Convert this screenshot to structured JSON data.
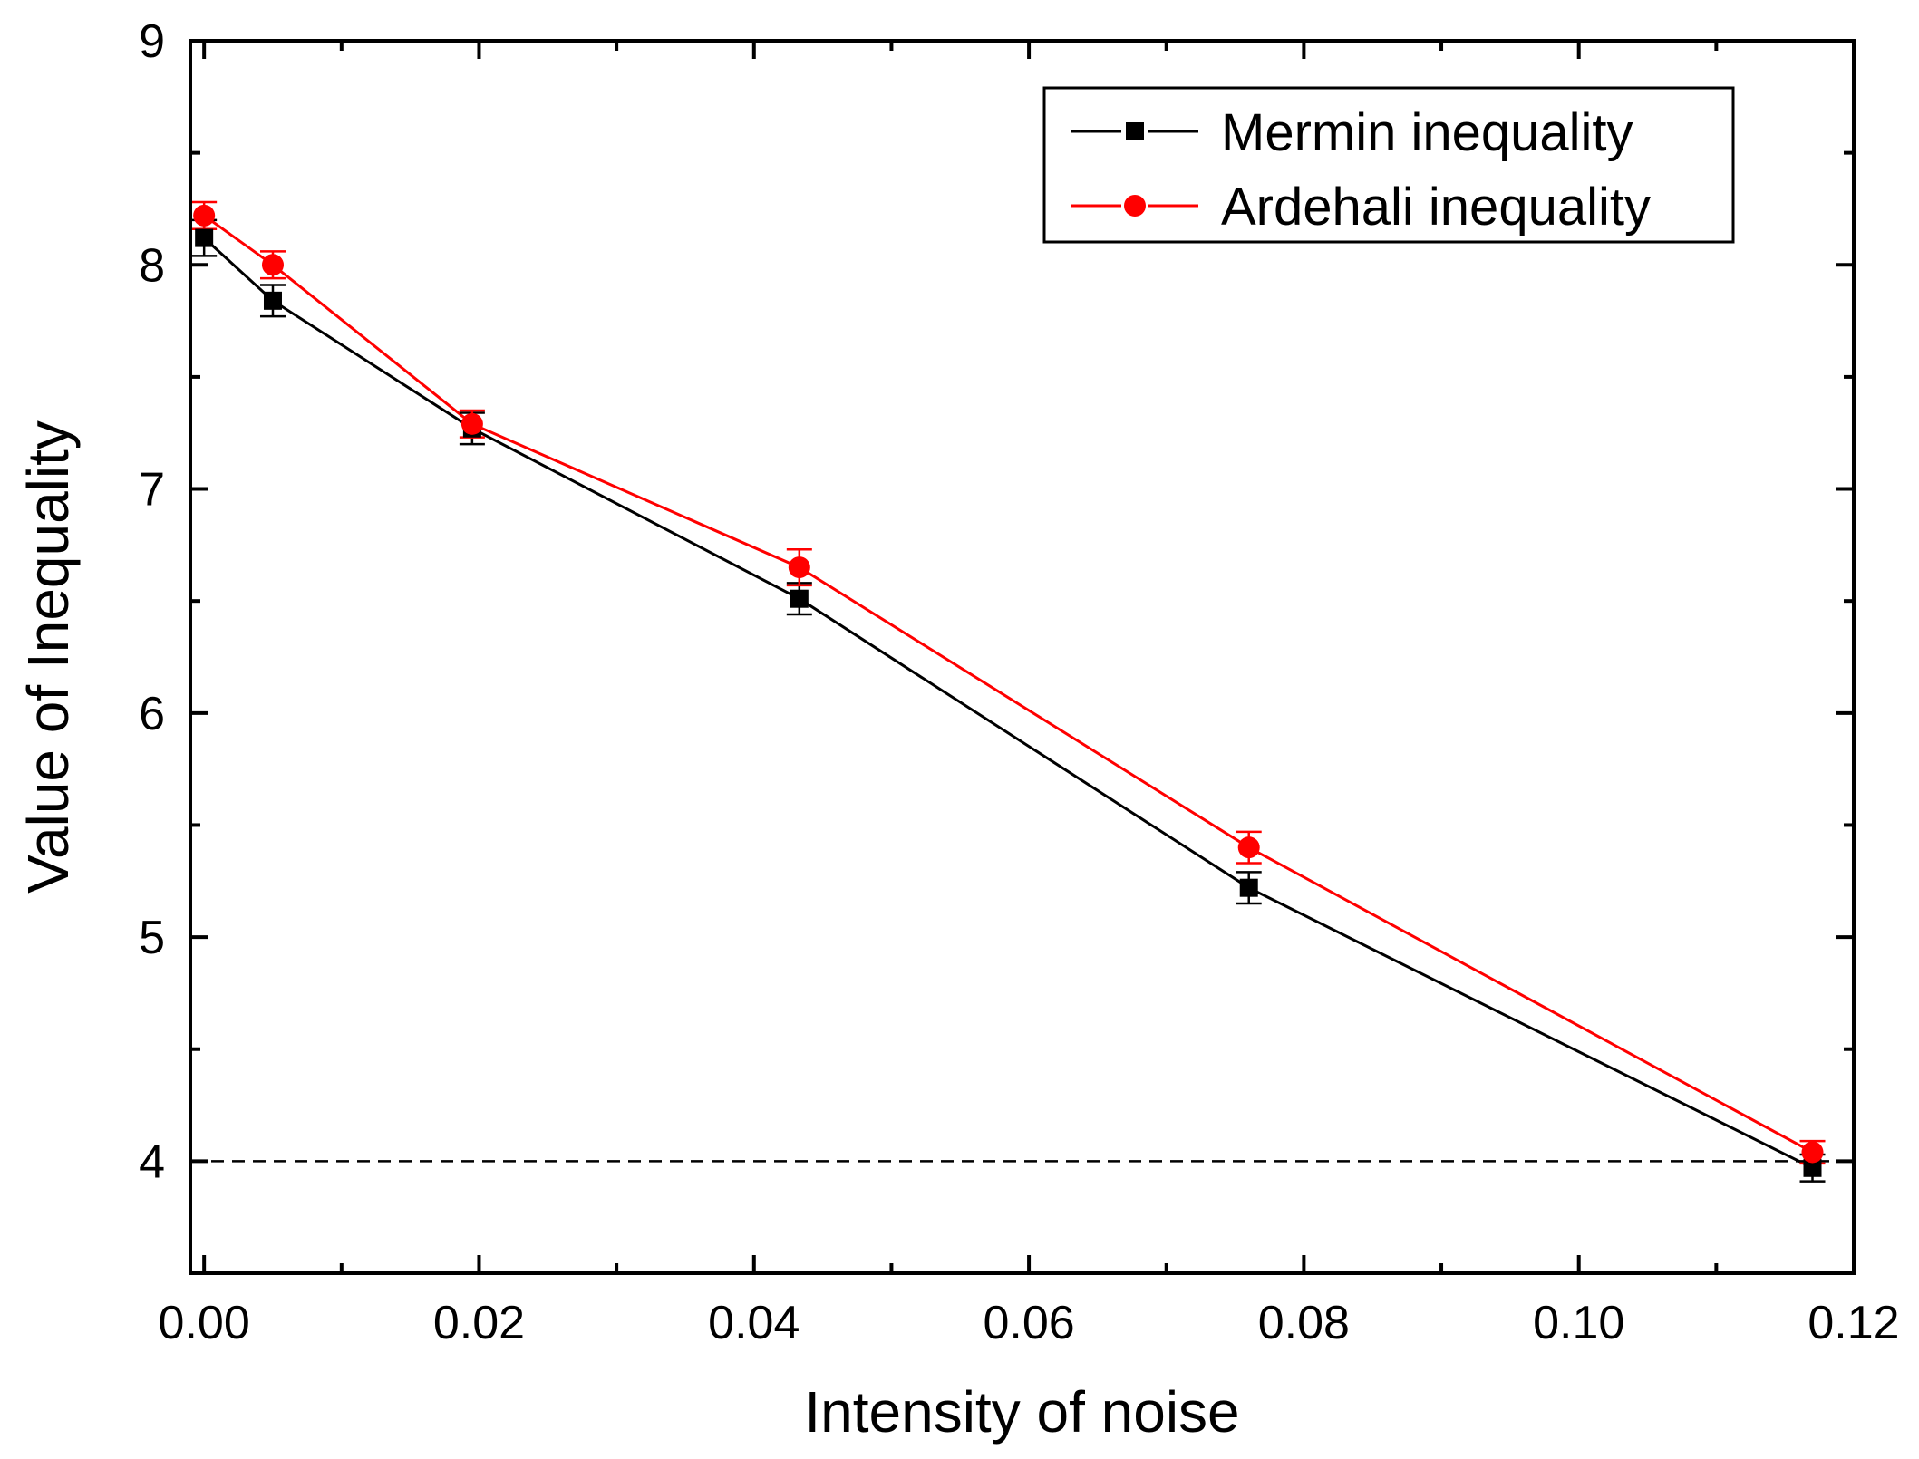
{
  "chart_data": {
    "type": "line",
    "title": "",
    "xlabel": "Intensity of noise",
    "ylabel": "Value of Inequality",
    "xlim": [
      -0.001,
      0.12
    ],
    "ylim": [
      3.5,
      9.0
    ],
    "xticks": [
      0.0,
      0.02,
      0.04,
      0.06,
      0.08,
      0.1,
      0.12
    ],
    "xtick_labels": [
      "0.00",
      "0.02",
      "0.04",
      "0.06",
      "0.08",
      "0.10",
      "0.12"
    ],
    "xminor": [
      0.01,
      0.03,
      0.05,
      0.07,
      0.09,
      0.11
    ],
    "yticks": [
      4,
      5,
      6,
      7,
      8,
      9
    ],
    "ytick_labels": [
      "4",
      "5",
      "6",
      "7",
      "8",
      "9"
    ],
    "yminor": [
      4.5,
      5.5,
      6.5,
      7.5,
      8.5
    ],
    "threshold": 4.0,
    "grid": false,
    "legend_position": "top-right",
    "series": [
      {
        "name": "Mermin inequality",
        "color": "#000000",
        "marker": "square",
        "x": [
          0.0,
          0.005,
          0.0195,
          0.0433,
          0.076,
          0.117
        ],
        "y": [
          8.12,
          7.84,
          7.27,
          6.51,
          5.22,
          3.97
        ],
        "err": [
          0.08,
          0.07,
          0.07,
          0.07,
          0.07,
          0.06
        ]
      },
      {
        "name": "Ardehali inequality",
        "color": "#ff0000",
        "marker": "circle",
        "x": [
          0.0,
          0.005,
          0.0195,
          0.0433,
          0.076,
          0.117
        ],
        "y": [
          8.22,
          8.0,
          7.29,
          6.65,
          5.4,
          4.04
        ],
        "err": [
          0.06,
          0.06,
          0.06,
          0.08,
          0.07,
          0.05
        ]
      }
    ]
  }
}
